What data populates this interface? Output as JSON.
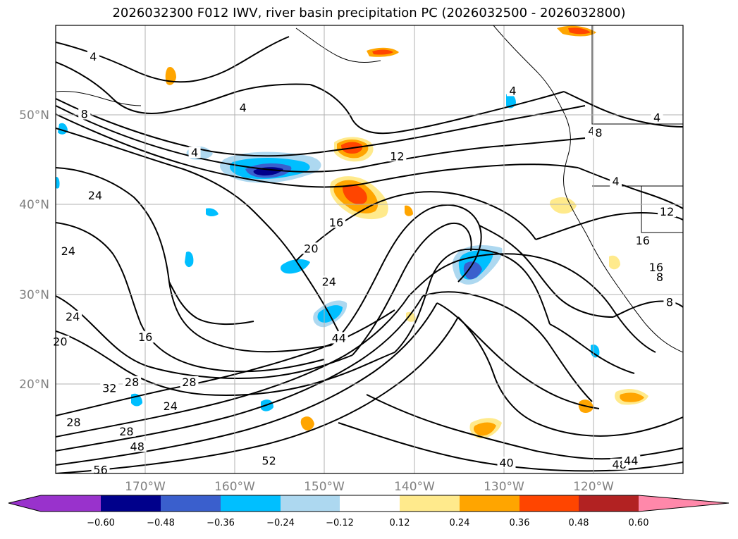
{
  "title": "2026032300 F012 IWV, river basin precipitation PC (2026032500 - 2026032800)",
  "map": {
    "lon_range": [
      -180,
      -110
    ],
    "lat_range": [
      10,
      60
    ],
    "lat_labels": [
      "20°N",
      "30°N",
      "40°N",
      "50°N"
    ],
    "lon_labels": [
      "170°W",
      "160°W",
      "150°W",
      "140°W",
      "130°W",
      "120°W"
    ],
    "grid": true,
    "contour_labels": [
      {
        "text": "4",
        "lon": -175.8,
        "lat": 56.3
      },
      {
        "text": "4",
        "lon": -159.1,
        "lat": 50.6
      },
      {
        "text": "4",
        "lon": -117.5,
        "lat": 42.4
      },
      {
        "text": "4",
        "lon": -112.9,
        "lat": 49.5
      },
      {
        "text": "4",
        "lon": -120.2,
        "lat": 48.0
      },
      {
        "text": "4",
        "lon": -164.5,
        "lat": 45.6
      },
      {
        "text": "8",
        "lon": -176.8,
        "lat": 49.9
      },
      {
        "text": "12",
        "lon": -141.9,
        "lat": 45.2
      },
      {
        "text": "12",
        "lon": -111.8,
        "lat": 39.0
      },
      {
        "text": "16",
        "lon": -148.7,
        "lat": 37.8
      },
      {
        "text": "20",
        "lon": -151.5,
        "lat": 34.9
      },
      {
        "text": "24",
        "lon": -175.6,
        "lat": 40.8
      },
      {
        "text": "24",
        "lon": -178.6,
        "lat": 34.6
      },
      {
        "text": "24",
        "lon": -178.1,
        "lat": 27.3
      },
      {
        "text": "24",
        "lon": -149.5,
        "lat": 31.2
      },
      {
        "text": "16",
        "lon": -170.0,
        "lat": 25.0
      },
      {
        "text": "20",
        "lon": -179.5,
        "lat": 24.5
      },
      {
        "text": "28",
        "lon": -171.5,
        "lat": 20.0
      },
      {
        "text": "28",
        "lon": -165.1,
        "lat": 20.0
      },
      {
        "text": "28",
        "lon": -178.0,
        "lat": 15.5
      },
      {
        "text": "28",
        "lon": -172.1,
        "lat": 14.5
      },
      {
        "text": "32",
        "lon": -174.0,
        "lat": 19.3
      },
      {
        "text": "24",
        "lon": -167.2,
        "lat": 17.3
      },
      {
        "text": "48",
        "lon": -170.9,
        "lat": 12.8
      },
      {
        "text": "52",
        "lon": -156.2,
        "lat": 11.2
      },
      {
        "text": "56",
        "lon": -175.0,
        "lat": 10.2
      },
      {
        "text": "44",
        "lon": -148.4,
        "lat": 24.9
      },
      {
        "text": "40",
        "lon": -129.7,
        "lat": 11.0
      },
      {
        "text": "48",
        "lon": -117.1,
        "lat": 10.8
      },
      {
        "text": "44",
        "lon": -115.8,
        "lat": 11.2
      },
      {
        "text": "16",
        "lon": -114.5,
        "lat": 35.8
      },
      {
        "text": "16",
        "lon": -113.0,
        "lat": 32.8
      },
      {
        "text": "8",
        "lon": -111.5,
        "lat": 28.9
      },
      {
        "text": "8",
        "lon": -112.6,
        "lat": 31.7
      },
      {
        "text": "8",
        "lon": -119.4,
        "lat": 47.8
      },
      {
        "text": "4",
        "lon": -129.0,
        "lat": 52.5
      }
    ]
  },
  "colorbar": {
    "ticks": [
      "−0.60",
      "−0.48",
      "−0.36",
      "−0.24",
      "−0.12",
      "0.12",
      "0.24",
      "0.36",
      "0.48",
      "0.60"
    ],
    "colors": [
      "#9932cc",
      "#00008b",
      "#3a5fcd",
      "#00bfff",
      "#add8f0",
      "#ffffff",
      "#ffea8c",
      "#ffa500",
      "#ff4500",
      "#b22222",
      "#ff88aa"
    ]
  }
}
